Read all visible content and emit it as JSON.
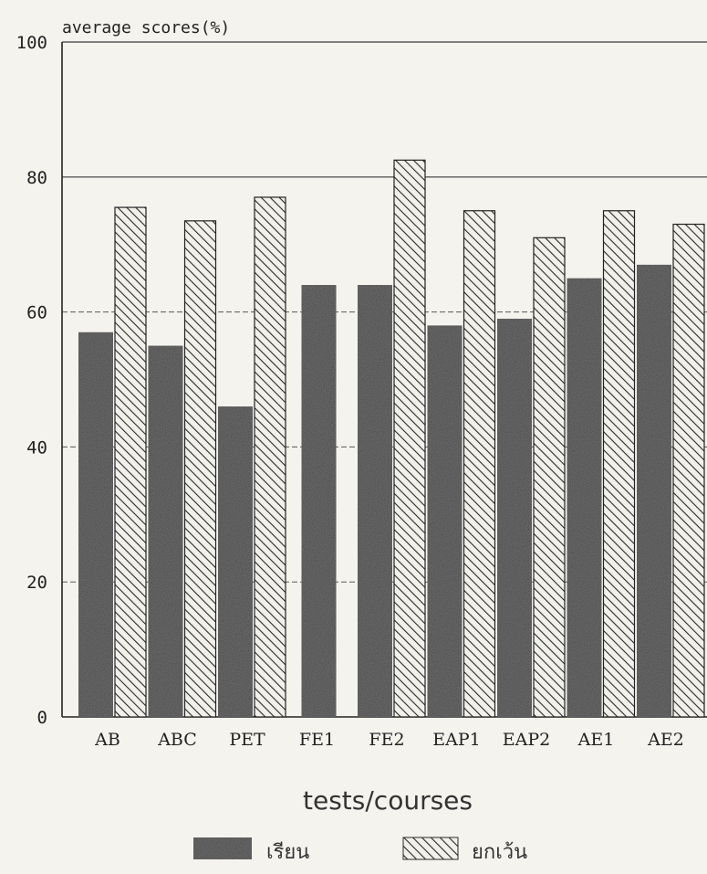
{
  "chart_data": {
    "type": "bar",
    "title": "",
    "ylabel": "average scores(%)",
    "xlabel": "tests/courses",
    "ylim": [
      0,
      100
    ],
    "yticks": [
      0,
      20,
      40,
      60,
      80,
      100
    ],
    "grid": true,
    "legend_position": "bottom",
    "categories": [
      "AB",
      "ABC",
      "PET",
      "FE1",
      "FE2",
      "EAP1",
      "EAP2",
      "AE1",
      "AE2"
    ],
    "series": [
      {
        "name": "เรียน",
        "fill": "stipple",
        "color": "#6e6e6e",
        "values": [
          57,
          55,
          46,
          64,
          64,
          58,
          59,
          65,
          67
        ]
      },
      {
        "name": "ยกเว้น",
        "fill": "hatch",
        "color": "#3a3a3a",
        "values": [
          75.5,
          73.5,
          77,
          null,
          82.5,
          75,
          71,
          75,
          73
        ]
      }
    ]
  }
}
